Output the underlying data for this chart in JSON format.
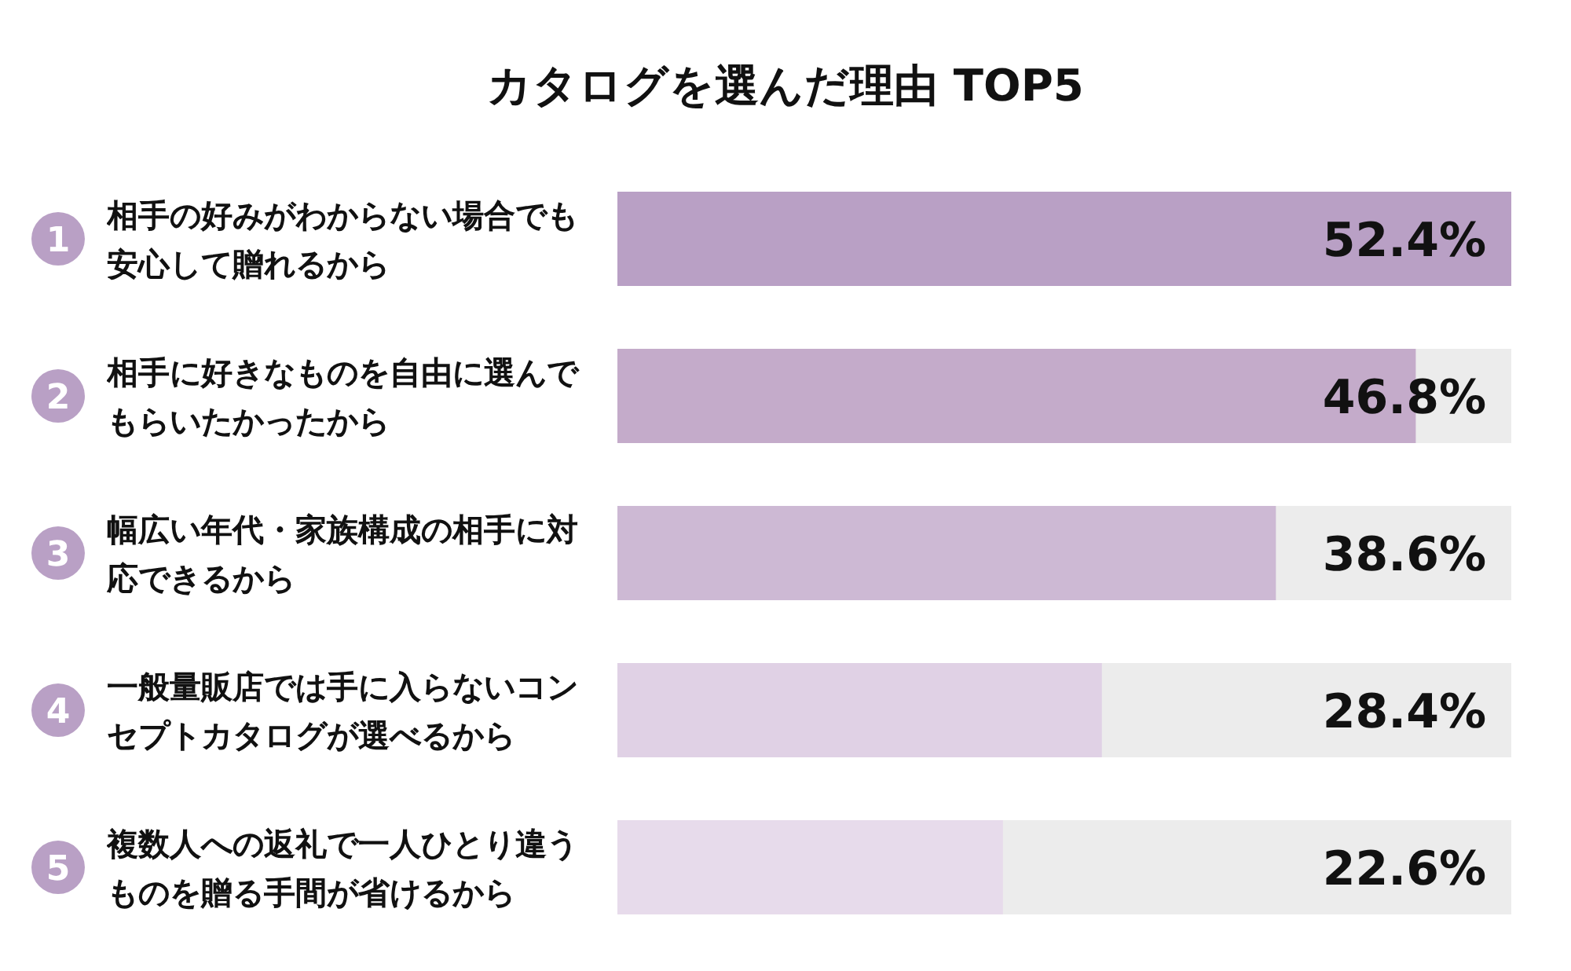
{
  "chart_data": {
    "type": "bar",
    "orientation": "horizontal",
    "title": "カタログを選んだ理由 TOP5",
    "categories": [
      "相手の好みがわからない場合でも安心して贈れるから",
      "相手に好きなものを自由に選んでもらいたかったから",
      "幅広い年代・家族構成の相手に対応できるから",
      "一般量販店では手に入らないコンセプトカタログが選べるから",
      "複数人への返礼で一人ひとり違うものを贈る手間が省けるから"
    ],
    "values": [
      52.4,
      46.8,
      38.6,
      28.4,
      22.6
    ],
    "colors": [
      "#b9a0c5",
      "#c4abca",
      "#cdb9d4",
      "#e0d1e5",
      "#e7dbeb"
    ],
    "value_labels": [
      "52.4%",
      "46.8%",
      "38.6%",
      "28.4%",
      "22.6%"
    ],
    "annotations": [
      "1",
      "2",
      "3",
      "4",
      "5"
    ],
    "tick_labels": "y"
  }
}
